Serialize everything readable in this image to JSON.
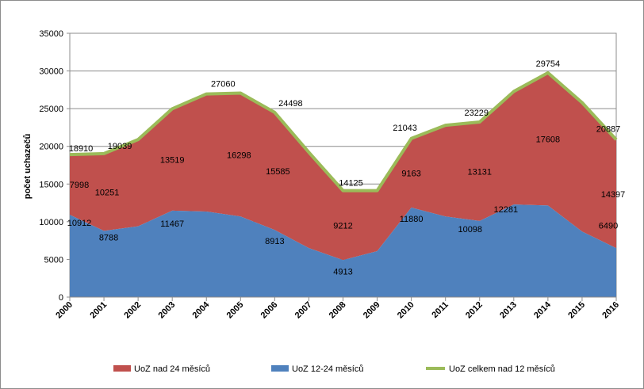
{
  "chart_data": {
    "type": "area",
    "title": "",
    "xlabel": "",
    "ylabel": "počet uchazečů",
    "ylim": [
      0,
      35000
    ],
    "yticks": [
      0,
      5000,
      10000,
      15000,
      20000,
      25000,
      30000,
      35000
    ],
    "ytick_labels": [
      "0",
      "5000",
      "10000",
      "15000",
      "20000",
      "25000",
      "30000",
      "35000"
    ],
    "grid": "horizontal",
    "legend_position": "bottom",
    "categories": [
      "2000",
      "2001",
      "2002",
      "2003",
      "2004",
      "2005",
      "2006",
      "2007",
      "2008",
      "2009",
      "2010",
      "2011",
      "2012",
      "2013",
      "2014",
      "2015",
      "2016"
    ],
    "series": [
      {
        "name": "UoZ 12-24 měsíců",
        "kind": "stacked-area",
        "color": "#4f81bd",
        "values": [
          10912,
          8788,
          9400,
          11467,
          11350,
          10700,
          8913,
          6500,
          4913,
          6100,
          11880,
          10700,
          10098,
          12281,
          12150,
          8700,
          6490
        ],
        "labels": [
          "10912",
          "8788",
          "",
          "11467",
          "",
          "",
          "8913",
          "",
          "4913",
          "",
          "11880",
          "",
          "10098",
          "12281",
          "",
          "",
          "6490"
        ]
      },
      {
        "name": "UoZ nad 24 měsíců",
        "kind": "stacked-area",
        "color": "#c0504d",
        "values": [
          7998,
          10251,
          11500,
          13519,
          15600,
          16298,
          15585,
          12700,
          9212,
          8025,
          9163,
          12100,
          13131,
          15000,
          17608,
          17100,
          14397
        ],
        "labels": [
          "7998",
          "10251",
          "",
          "13519",
          "",
          "16298",
          "15585",
          "",
          "9212",
          "",
          "9163",
          "",
          "13131",
          "",
          "17608",
          "",
          "14397"
        ]
      },
      {
        "name": "UoZ celkem nad 12 měsíců",
        "kind": "line",
        "color": "#9bbb59",
        "values": [
          18910,
          19039,
          20900,
          24986,
          26950,
          27060,
          24498,
          19200,
          14125,
          14125,
          21043,
          22800,
          23229,
          27281,
          29754,
          25800,
          20887
        ],
        "labels": [
          "18910",
          "19039",
          "",
          "",
          "",
          "27060",
          "24498",
          "",
          "14125",
          "",
          "21043",
          "",
          "23229",
          "",
          "29754",
          "",
          "20887"
        ]
      }
    ]
  }
}
